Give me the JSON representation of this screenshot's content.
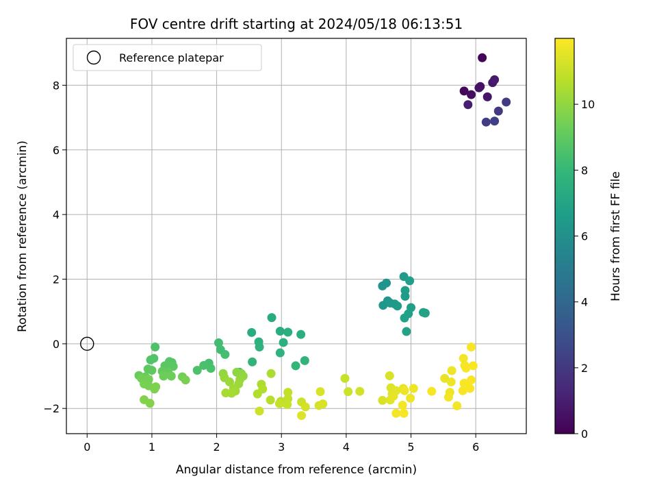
{
  "chart_data": {
    "type": "scatter",
    "title": "FOV centre drift starting at 2024/05/18 06:13:51",
    "xlabel": "Angular distance from reference (arcmin)",
    "ylabel": "Rotation from reference (arcmin)",
    "xlim": [
      -0.32,
      6.78
    ],
    "ylim": [
      -2.78,
      9.45
    ],
    "xticks": [
      0,
      1,
      2,
      3,
      4,
      5,
      6
    ],
    "yticks": [
      -2,
      0,
      2,
      4,
      6,
      8
    ],
    "grid": true,
    "legend_position": "top-left",
    "reference": {
      "label": "Reference platepar",
      "x": 0,
      "y": 0,
      "marker": "open-circle"
    },
    "colorbar": {
      "label": "Hours from first FF file",
      "range": [
        0,
        12
      ],
      "ticks": [
        0,
        2,
        4,
        6,
        8,
        10
      ],
      "colormap": "viridis",
      "colors": [
        "#440154",
        "#482878",
        "#3e4989",
        "#31688e",
        "#26828e",
        "#1f9e89",
        "#35b779",
        "#6ece58",
        "#b5de2b",
        "#fde725"
      ]
    },
    "points": [
      {
        "x": 6.1,
        "y": 8.85,
        "h": 0.1
      },
      {
        "x": 5.82,
        "y": 7.82,
        "h": 0.2
      },
      {
        "x": 5.93,
        "y": 7.71,
        "h": 0.4
      },
      {
        "x": 6.05,
        "y": 7.92,
        "h": 0.5
      },
      {
        "x": 6.07,
        "y": 7.96,
        "h": 0.6
      },
      {
        "x": 6.18,
        "y": 7.64,
        "h": 0.7
      },
      {
        "x": 6.26,
        "y": 8.08,
        "h": 0.8
      },
      {
        "x": 6.29,
        "y": 8.17,
        "h": 0.9
      },
      {
        "x": 5.88,
        "y": 7.4,
        "h": 1.0
      },
      {
        "x": 6.35,
        "y": 7.2,
        "h": 2.0
      },
      {
        "x": 6.47,
        "y": 7.48,
        "h": 2.1
      },
      {
        "x": 6.16,
        "y": 6.86,
        "h": 2.2
      },
      {
        "x": 6.29,
        "y": 6.89,
        "h": 2.3
      },
      {
        "x": 4.56,
        "y": 1.79,
        "h": 6.2
      },
      {
        "x": 4.62,
        "y": 1.88,
        "h": 6.2
      },
      {
        "x": 4.57,
        "y": 1.19,
        "h": 6.3
      },
      {
        "x": 4.64,
        "y": 1.33,
        "h": 6.3
      },
      {
        "x": 4.68,
        "y": 1.26,
        "h": 6.4
      },
      {
        "x": 4.75,
        "y": 1.23,
        "h": 6.4
      },
      {
        "x": 4.79,
        "y": 1.17,
        "h": 6.5
      },
      {
        "x": 4.89,
        "y": 2.08,
        "h": 6.5
      },
      {
        "x": 4.91,
        "y": 1.65,
        "h": 6.6
      },
      {
        "x": 4.91,
        "y": 1.47,
        "h": 6.6
      },
      {
        "x": 4.98,
        "y": 1.95,
        "h": 6.7
      },
      {
        "x": 5.0,
        "y": 1.12,
        "h": 6.7
      },
      {
        "x": 4.96,
        "y": 0.93,
        "h": 6.8
      },
      {
        "x": 4.9,
        "y": 0.8,
        "h": 6.8
      },
      {
        "x": 4.93,
        "y": 0.38,
        "h": 6.9
      },
      {
        "x": 5.19,
        "y": 0.97,
        "h": 6.9
      },
      {
        "x": 5.22,
        "y": 0.95,
        "h": 6.9
      },
      {
        "x": 2.85,
        "y": 0.81,
        "h": 7.3
      },
      {
        "x": 2.54,
        "y": 0.35,
        "h": 7.4
      },
      {
        "x": 2.98,
        "y": 0.39,
        "h": 7.4
      },
      {
        "x": 3.1,
        "y": 0.36,
        "h": 7.5
      },
      {
        "x": 3.3,
        "y": 0.29,
        "h": 7.5
      },
      {
        "x": 2.65,
        "y": 0.06,
        "h": 7.6
      },
      {
        "x": 3.03,
        "y": 0.04,
        "h": 7.6
      },
      {
        "x": 2.66,
        "y": -0.1,
        "h": 7.7
      },
      {
        "x": 2.98,
        "y": -0.28,
        "h": 7.7
      },
      {
        "x": 2.55,
        "y": -0.56,
        "h": 7.8
      },
      {
        "x": 3.36,
        "y": -0.52,
        "h": 7.8
      },
      {
        "x": 3.22,
        "y": -0.68,
        "h": 7.9
      },
      {
        "x": 2.35,
        "y": -0.88,
        "h": 7.9
      },
      {
        "x": 2.03,
        "y": 0.03,
        "h": 8.3
      },
      {
        "x": 2.06,
        "y": -0.18,
        "h": 8.3
      },
      {
        "x": 2.13,
        "y": -0.33,
        "h": 8.4
      },
      {
        "x": 1.88,
        "y": -0.6,
        "h": 8.4
      },
      {
        "x": 1.8,
        "y": -0.67,
        "h": 8.5
      },
      {
        "x": 1.91,
        "y": -0.76,
        "h": 8.5
      },
      {
        "x": 1.7,
        "y": -0.82,
        "h": 8.6
      },
      {
        "x": 1.05,
        "y": -0.1,
        "h": 8.6
      },
      {
        "x": 1.03,
        "y": -0.45,
        "h": 8.7
      },
      {
        "x": 0.98,
        "y": -0.5,
        "h": 8.7
      },
      {
        "x": 1.27,
        "y": -0.55,
        "h": 8.8
      },
      {
        "x": 1.31,
        "y": -0.58,
        "h": 8.8
      },
      {
        "x": 1.2,
        "y": -0.68,
        "h": 8.9
      },
      {
        "x": 1.33,
        "y": -0.7,
        "h": 8.9
      },
      {
        "x": 0.94,
        "y": -0.78,
        "h": 9.0
      },
      {
        "x": 1.0,
        "y": -0.82,
        "h": 9.0
      },
      {
        "x": 1.16,
        "y": -0.85,
        "h": 9.1
      },
      {
        "x": 1.25,
        "y": -0.88,
        "h": 9.1
      },
      {
        "x": 0.8,
        "y": -0.98,
        "h": 9.2
      },
      {
        "x": 0.9,
        "y": -1.02,
        "h": 9.2
      },
      {
        "x": 1.18,
        "y": -1.0,
        "h": 9.3
      },
      {
        "x": 1.3,
        "y": -1.0,
        "h": 9.3
      },
      {
        "x": 0.84,
        "y": -1.07,
        "h": 9.4
      },
      {
        "x": 0.95,
        "y": -1.1,
        "h": 9.4
      },
      {
        "x": 1.47,
        "y": -1.02,
        "h": 9.4
      },
      {
        "x": 1.52,
        "y": -1.12,
        "h": 9.5
      },
      {
        "x": 0.88,
        "y": -1.24,
        "h": 9.5
      },
      {
        "x": 0.95,
        "y": -1.3,
        "h": 9.5
      },
      {
        "x": 1.06,
        "y": -1.33,
        "h": 9.6
      },
      {
        "x": 1.04,
        "y": -1.4,
        "h": 9.6
      },
      {
        "x": 0.88,
        "y": -1.73,
        "h": 9.7
      },
      {
        "x": 0.97,
        "y": -1.84,
        "h": 9.7
      },
      {
        "x": 2.38,
        "y": -0.92,
        "h": 9.9
      },
      {
        "x": 2.31,
        "y": -0.88,
        "h": 9.9
      },
      {
        "x": 2.1,
        "y": -0.92,
        "h": 10.0
      },
      {
        "x": 2.41,
        "y": -1.0,
        "h": 10.0
      },
      {
        "x": 2.12,
        "y": -1.05,
        "h": 10.1
      },
      {
        "x": 2.36,
        "y": -1.1,
        "h": 10.1
      },
      {
        "x": 2.2,
        "y": -1.18,
        "h": 10.2
      },
      {
        "x": 2.34,
        "y": -1.24,
        "h": 10.2
      },
      {
        "x": 2.26,
        "y": -1.38,
        "h": 10.3
      },
      {
        "x": 2.29,
        "y": -1.46,
        "h": 10.3
      },
      {
        "x": 2.14,
        "y": -1.52,
        "h": 10.4
      },
      {
        "x": 2.23,
        "y": -1.53,
        "h": 10.4
      },
      {
        "x": 2.84,
        "y": -0.92,
        "h": 10.5
      },
      {
        "x": 2.69,
        "y": -1.25,
        "h": 10.5
      },
      {
        "x": 2.71,
        "y": -1.4,
        "h": 10.6
      },
      {
        "x": 2.63,
        "y": -1.55,
        "h": 10.6
      },
      {
        "x": 2.83,
        "y": -1.74,
        "h": 10.7
      },
      {
        "x": 2.99,
        "y": -1.78,
        "h": 10.7
      },
      {
        "x": 3.04,
        "y": -1.82,
        "h": 10.8
      },
      {
        "x": 3.08,
        "y": -1.78,
        "h": 10.8
      },
      {
        "x": 3.1,
        "y": -1.5,
        "h": 10.9
      },
      {
        "x": 3.1,
        "y": -1.7,
        "h": 10.9
      },
      {
        "x": 2.97,
        "y": -1.85,
        "h": 11.0
      },
      {
        "x": 3.09,
        "y": -1.88,
        "h": 11.0
      },
      {
        "x": 2.66,
        "y": -2.08,
        "h": 11.1
      },
      {
        "x": 3.31,
        "y": -1.8,
        "h": 11.1
      },
      {
        "x": 3.37,
        "y": -1.95,
        "h": 11.2
      },
      {
        "x": 3.58,
        "y": -1.91,
        "h": 11.2
      },
      {
        "x": 3.64,
        "y": -1.86,
        "h": 11.3
      },
      {
        "x": 3.6,
        "y": -1.48,
        "h": 11.3
      },
      {
        "x": 3.31,
        "y": -2.22,
        "h": 11.4
      },
      {
        "x": 3.98,
        "y": -1.07,
        "h": 11.0
      },
      {
        "x": 4.03,
        "y": -1.48,
        "h": 11.1
      },
      {
        "x": 4.21,
        "y": -1.47,
        "h": 11.2
      },
      {
        "x": 4.56,
        "y": -1.75,
        "h": 11.3
      },
      {
        "x": 4.67,
        "y": -0.99,
        "h": 11.3
      },
      {
        "x": 4.69,
        "y": -1.36,
        "h": 11.4
      },
      {
        "x": 4.71,
        "y": -1.55,
        "h": 11.4
      },
      {
        "x": 4.77,
        "y": -1.45,
        "h": 11.5
      },
      {
        "x": 4.68,
        "y": -1.74,
        "h": 11.5
      },
      {
        "x": 4.73,
        "y": -1.62,
        "h": 11.6
      },
      {
        "x": 4.88,
        "y": -1.38,
        "h": 11.6
      },
      {
        "x": 4.9,
        "y": -1.45,
        "h": 11.7
      },
      {
        "x": 5.04,
        "y": -1.38,
        "h": 11.7
      },
      {
        "x": 4.99,
        "y": -1.68,
        "h": 11.7
      },
      {
        "x": 4.87,
        "y": -1.9,
        "h": 11.8
      },
      {
        "x": 4.77,
        "y": -2.15,
        "h": 11.8
      },
      {
        "x": 4.89,
        "y": -2.15,
        "h": 11.9
      },
      {
        "x": 5.32,
        "y": -1.47,
        "h": 11.9
      },
      {
        "x": 5.52,
        "y": -1.07,
        "h": 11.6
      },
      {
        "x": 5.63,
        "y": -0.83,
        "h": 11.7
      },
      {
        "x": 5.62,
        "y": -1.18,
        "h": 11.7
      },
      {
        "x": 5.6,
        "y": -1.5,
        "h": 11.7
      },
      {
        "x": 5.58,
        "y": -1.65,
        "h": 11.8
      },
      {
        "x": 5.71,
        "y": -1.92,
        "h": 11.8
      },
      {
        "x": 5.81,
        "y": -0.45,
        "h": 11.8
      },
      {
        "x": 5.83,
        "y": -0.67,
        "h": 11.8
      },
      {
        "x": 5.85,
        "y": -0.75,
        "h": 11.9
      },
      {
        "x": 5.82,
        "y": -1.22,
        "h": 11.9
      },
      {
        "x": 5.8,
        "y": -1.45,
        "h": 11.9
      },
      {
        "x": 5.86,
        "y": -1.3,
        "h": 11.9
      },
      {
        "x": 5.93,
        "y": -0.1,
        "h": 11.9
      },
      {
        "x": 5.96,
        "y": -0.68,
        "h": 11.9
      },
      {
        "x": 5.93,
        "y": -1.12,
        "h": 11.9
      },
      {
        "x": 5.91,
        "y": -1.38,
        "h": 11.9
      }
    ]
  }
}
